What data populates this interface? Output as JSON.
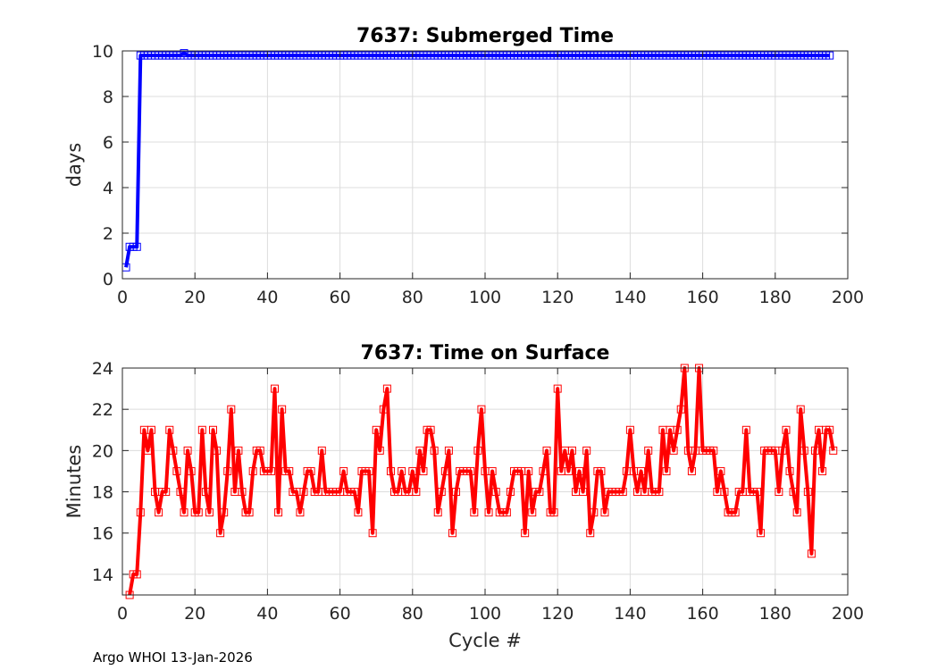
{
  "footer": "Argo WHOI 13-Jan-2026",
  "chart_data": [
    {
      "type": "line",
      "title": "7637: Submerged Time",
      "xlabel": "",
      "ylabel": "days",
      "xlim": [
        0,
        200
      ],
      "ylim": [
        0,
        10
      ],
      "xticks": [
        0,
        20,
        40,
        60,
        80,
        100,
        120,
        140,
        160,
        180,
        200
      ],
      "yticks": [
        0,
        2,
        4,
        6,
        8,
        10
      ],
      "grid": true,
      "marker": "square",
      "color": "#0000ff",
      "series": [
        {
          "x_start": 1,
          "values": [
            0.5,
            1.4,
            1.4,
            1.4,
            9.8,
            9.8,
            9.8,
            9.8,
            9.8,
            9.8,
            9.8,
            9.8,
            9.8,
            9.8,
            9.8,
            9.8,
            9.9,
            9.8,
            9.8,
            9.8,
            9.8,
            9.8,
            9.8,
            9.8,
            9.8,
            9.8,
            9.8,
            9.8,
            9.8,
            9.8,
            9.8,
            9.8,
            9.8,
            9.8,
            9.8,
            9.8,
            9.8,
            9.8,
            9.8,
            9.8,
            9.8,
            9.8,
            9.8,
            9.8,
            9.8,
            9.8,
            9.8,
            9.8,
            9.8,
            9.8,
            9.8,
            9.8,
            9.8,
            9.8,
            9.8,
            9.8,
            9.8,
            9.8,
            9.8,
            9.8,
            9.8,
            9.8,
            9.8,
            9.8,
            9.8,
            9.8,
            9.8,
            9.8,
            9.8,
            9.8,
            9.8,
            9.8,
            9.8,
            9.8,
            9.8,
            9.8,
            9.8,
            9.8,
            9.8,
            9.8,
            9.8,
            9.8,
            9.8,
            9.8,
            9.8,
            9.8,
            9.8,
            9.8,
            9.8,
            9.8,
            9.8,
            9.8,
            9.8,
            9.8,
            9.8,
            9.8,
            9.8,
            9.8,
            9.8,
            9.8,
            9.8,
            9.8,
            9.8,
            9.8,
            9.8,
            9.8,
            9.8,
            9.8,
            9.8,
            9.8,
            9.8,
            9.8,
            9.8,
            9.8,
            9.8,
            9.8,
            9.8,
            9.8,
            9.8,
            9.8,
            9.8,
            9.8,
            9.8,
            9.8,
            9.8,
            9.8,
            9.8,
            9.8,
            9.8,
            9.8,
            9.8,
            9.8,
            9.8,
            9.8,
            9.8,
            9.8,
            9.8,
            9.8,
            9.8,
            9.8,
            9.8,
            9.8,
            9.8,
            9.8,
            9.8,
            9.8,
            9.8,
            9.8,
            9.8,
            9.8,
            9.8,
            9.8,
            9.8,
            9.8,
            9.8,
            9.8,
            9.8,
            9.8,
            9.8,
            9.8,
            9.8,
            9.8,
            9.8,
            9.8,
            9.8,
            9.8,
            9.8,
            9.8,
            9.8,
            9.8,
            9.8,
            9.8,
            9.8,
            9.8,
            9.8,
            9.8,
            9.8,
            9.8,
            9.8,
            9.8,
            9.8,
            9.8,
            9.8,
            9.8,
            9.8,
            9.8,
            9.8,
            9.8,
            9.8,
            9.8,
            9.8,
            9.8,
            9.8,
            9.8,
            9.8
          ]
        }
      ]
    },
    {
      "type": "line",
      "title": "7637: Time on Surface",
      "xlabel": "Cycle #",
      "ylabel": "Minutes",
      "xlim": [
        0,
        200
      ],
      "ylim": [
        13,
        24
      ],
      "xticks": [
        0,
        20,
        40,
        60,
        80,
        100,
        120,
        140,
        160,
        180,
        200
      ],
      "yticks": [
        14,
        16,
        18,
        20,
        22,
        24
      ],
      "grid": true,
      "marker": "square",
      "color": "#ff0000",
      "series": [
        {
          "x_start": 2,
          "values": [
            13,
            14,
            14,
            17,
            21,
            20,
            21,
            18,
            17,
            18,
            18,
            21,
            20,
            19,
            18,
            17,
            20,
            19,
            17,
            17,
            21,
            18,
            17,
            21,
            20,
            16,
            17,
            19,
            22,
            18,
            20,
            18,
            17,
            17,
            19,
            20,
            20,
            19,
            19,
            19,
            23,
            17,
            22,
            19,
            19,
            18,
            18,
            17,
            18,
            19,
            19,
            18,
            18,
            20,
            18,
            18,
            18,
            18,
            18,
            19,
            18,
            18,
            18,
            17,
            19,
            19,
            19,
            16,
            21,
            20,
            22,
            23,
            19,
            18,
            18,
            19,
            18,
            18,
            19,
            18,
            20,
            19,
            21,
            21,
            20,
            17,
            18,
            19,
            20,
            16,
            18,
            19,
            19,
            19,
            19,
            17,
            20,
            22,
            19,
            17,
            19,
            18,
            17,
            17,
            17,
            18,
            19,
            19,
            19,
            16,
            19,
            17,
            18,
            18,
            19,
            20,
            17,
            17,
            23,
            19,
            20,
            19,
            20,
            18,
            19,
            18,
            20,
            16,
            17,
            19,
            19,
            17,
            18,
            18,
            18,
            18,
            18,
            19,
            21,
            19,
            18,
            19,
            18,
            20,
            18,
            18,
            18,
            21,
            19,
            21,
            20,
            21,
            22,
            24,
            20,
            19,
            20,
            24,
            20,
            20,
            20,
            20,
            18,
            19,
            18,
            17,
            17,
            17,
            18,
            18,
            21,
            18,
            18,
            18,
            16,
            20,
            20,
            20,
            20,
            18,
            20,
            21,
            19,
            18,
            17,
            22,
            20,
            18,
            15,
            20,
            21,
            19,
            21,
            21,
            20
          ]
        }
      ]
    }
  ]
}
